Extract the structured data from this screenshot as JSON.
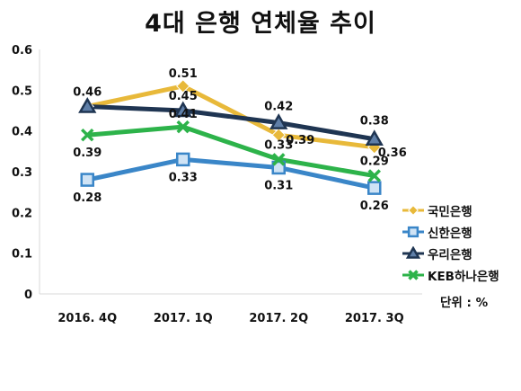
{
  "chart_data": {
    "type": "line",
    "title": "4대 은행 연체율 추이",
    "unit_note": "단위 : %",
    "categories": [
      "2016. 4Q",
      "2017. 1Q",
      "2017. 2Q",
      "2017. 3Q"
    ],
    "ylim": [
      0,
      0.6
    ],
    "yticks": [
      "0",
      "0.1",
      "0.2",
      "0.3",
      "0.4",
      "0.5",
      "0.6"
    ],
    "grid": false,
    "legend_position": "right",
    "series": [
      {
        "name": "국민은행",
        "values": [
          0.46,
          0.51,
          0.39,
          0.36
        ],
        "labels": [
          "",
          "0.51",
          "0.39",
          "0.36"
        ],
        "color": "#E8B93A",
        "marker": "diamond"
      },
      {
        "name": "신한은행",
        "values": [
          0.28,
          0.33,
          0.31,
          0.26
        ],
        "labels": [
          "0.28",
          "0.33",
          "0.31",
          "0.26"
        ],
        "color": "#3A86C8",
        "marker": "square"
      },
      {
        "name": "우리은행",
        "values": [
          0.46,
          0.45,
          0.42,
          0.38
        ],
        "labels": [
          "0.46",
          "0.45",
          "0.42",
          "0.38"
        ],
        "color": "#1F3552",
        "marker": "triangle"
      },
      {
        "name": "KEB하나은행",
        "values": [
          0.39,
          0.41,
          0.33,
          0.29
        ],
        "labels": [
          "0.39",
          "0.41",
          "0.33",
          "0.29"
        ],
        "color": "#2DB34A",
        "marker": "x"
      }
    ]
  }
}
